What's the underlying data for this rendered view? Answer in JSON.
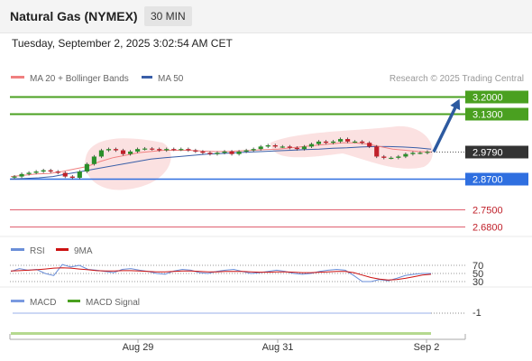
{
  "header": {
    "title": "Natural Gas (NYMEX)",
    "timeframe": "30 MIN",
    "timestamp": "Tuesday, September 2, 2025 3:02:54 AM CET"
  },
  "legend": {
    "ma20_bb": "MA 20 + Bollinger Bands",
    "ma50": "MA 50",
    "credit": "Research © 2025 Trading Central"
  },
  "colors": {
    "up_candle": "#2a8f2a",
    "down_candle": "#c0202a",
    "ma20": "#f08080",
    "ma50": "#3a5fa8",
    "resistance": "#4aa020",
    "support": "#2f6fe0",
    "support_lower": "#e06070",
    "current": "#333333",
    "rsi": "#6a8ed8",
    "nine_ma": "#cc1111",
    "macd": "#7a9ae0",
    "macd_signal": "#4aa020"
  },
  "chart_data": {
    "type": "candlestick",
    "price_levels": [
      {
        "label": "3.2000",
        "value": 3.2,
        "kind": "resistance"
      },
      {
        "label": "3.1300",
        "value": 3.13,
        "kind": "resistance"
      },
      {
        "label": "2.9790",
        "value": 2.979,
        "kind": "current"
      },
      {
        "label": "2.8700",
        "value": 2.87,
        "kind": "support"
      },
      {
        "label": "2.7500",
        "value": 2.75,
        "kind": "support_lower"
      },
      {
        "label": "2.6800",
        "value": 2.68,
        "kind": "support_lower"
      }
    ],
    "x_ticks": [
      "Aug 29",
      "Aug 31",
      "Sep 2"
    ],
    "close_series": [
      2.88,
      2.89,
      2.895,
      2.9,
      2.905,
      2.9,
      2.895,
      2.88,
      2.875,
      2.9,
      2.93,
      2.96,
      2.985,
      2.99,
      2.985,
      2.97,
      2.98,
      2.99,
      2.992,
      2.99,
      2.985,
      2.99,
      2.988,
      2.99,
      2.985,
      2.98,
      2.975,
      2.97,
      2.975,
      2.98,
      2.97,
      2.98,
      2.985,
      2.99,
      3.0,
      3.005,
      3.0,
      3.0,
      2.995,
      2.99,
      3.0,
      3.01,
      3.02,
      3.015,
      3.02,
      3.03,
      3.02,
      3.02,
      3.015,
      3.0,
      2.96,
      2.955,
      2.955,
      2.96,
      2.97,
      2.975,
      2.975,
      2.979
    ],
    "ma20_series": [
      2.88,
      2.885,
      2.89,
      2.892,
      2.9,
      2.91,
      2.92,
      2.94,
      2.955,
      2.965,
      2.975,
      2.98,
      2.985,
      2.985,
      2.985,
      2.982,
      2.98,
      2.98,
      2.983,
      2.985,
      2.988,
      2.99,
      2.995,
      3.0,
      3.005,
      3.01,
      3.015,
      3.015,
      3.01,
      3.0,
      2.99,
      2.985,
      2.98,
      2.978
    ],
    "ma50_series": [
      2.87,
      2.872,
      2.875,
      2.88,
      2.89,
      2.9,
      2.91,
      2.92,
      2.93,
      2.94,
      2.95,
      2.955,
      2.96,
      2.965,
      2.97,
      2.972,
      2.975,
      2.978,
      2.98,
      2.983,
      2.985,
      2.988,
      2.99,
      2.993,
      2.995,
      2.998,
      3.0,
      3.0,
      2.998,
      2.995,
      2.99
    ],
    "projection": {
      "from": 2.979,
      "to": 3.2
    }
  },
  "rsi": {
    "label": "RSI",
    "ma_label": "9MA",
    "levels": [
      "70",
      "50",
      "30"
    ],
    "rsi_series": [
      55,
      62,
      58,
      60,
      50,
      45,
      72,
      66,
      70,
      60,
      58,
      55,
      52,
      60,
      62,
      58,
      55,
      50,
      48,
      56,
      60,
      58,
      52,
      50,
      55,
      58,
      60,
      55,
      50,
      52,
      55,
      58,
      55,
      50,
      48,
      50,
      55,
      58,
      60,
      58,
      45,
      30,
      30,
      35,
      32,
      38,
      45,
      48,
      50,
      50
    ],
    "ma_series": [
      56,
      57,
      58,
      59,
      61,
      63,
      64,
      63,
      61,
      59,
      57,
      56,
      56,
      57,
      57,
      56,
      55,
      54,
      54,
      55,
      56,
      56,
      55,
      54,
      54,
      55,
      55,
      55,
      54,
      53,
      53,
      54,
      54,
      53,
      52,
      52,
      53,
      54,
      55,
      55,
      52,
      46,
      40,
      36,
      34,
      35,
      38,
      42,
      46,
      48
    ]
  },
  "macd": {
    "label": "MACD",
    "signal_label": "MACD Signal",
    "level": "-1"
  }
}
